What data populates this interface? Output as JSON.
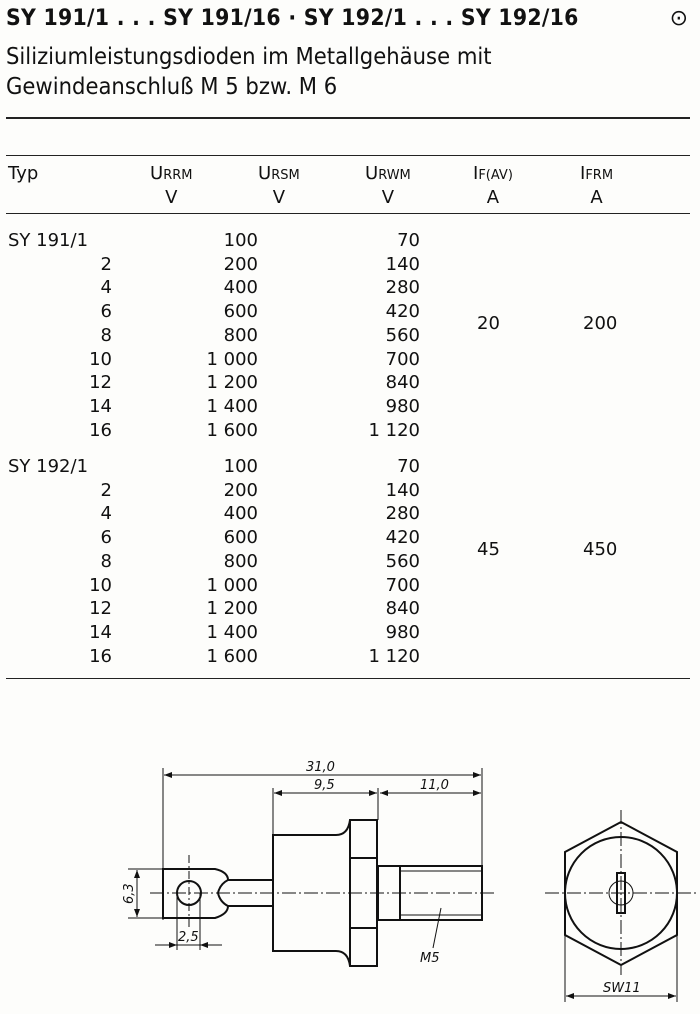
{
  "header": {
    "title": "SY 191/1 . . . SY 191/16 · SY 192/1 . . . SY 192/16",
    "symbol": "⊙",
    "subtitle_line1": "Siliziumleistungsdioden im Metallgehäuse mit",
    "subtitle_line2": "Gewindeanschluß M 5 bzw. M 6"
  },
  "table": {
    "columns": [
      {
        "symbol": "Typ",
        "sub": "",
        "unit": ""
      },
      {
        "symbol": "U",
        "sub": "RRM",
        "unit": "V"
      },
      {
        "symbol": "U",
        "sub": "RSM",
        "unit": "V"
      },
      {
        "symbol": "U",
        "sub": "RWM",
        "unit": "V"
      },
      {
        "symbol": "I",
        "sub": "F(AV)",
        "unit": "A"
      },
      {
        "symbol": "I",
        "sub": "FRM",
        "unit": "A"
      }
    ],
    "groups": [
      {
        "if_av": "20",
        "ifrm": "200",
        "rows": [
          {
            "typ": "SY 191/1",
            "urrm": "100",
            "urwm": "70"
          },
          {
            "typ": "2",
            "urrm": "200",
            "urwm": "140"
          },
          {
            "typ": "4",
            "urrm": "400",
            "urwm": "280"
          },
          {
            "typ": "6",
            "urrm": "600",
            "urwm": "420"
          },
          {
            "typ": "8",
            "urrm": "800",
            "urwm": "560"
          },
          {
            "typ": "10",
            "urrm": "1 000",
            "urwm": "700"
          },
          {
            "typ": "12",
            "urrm": "1 200",
            "urwm": "840"
          },
          {
            "typ": "14",
            "urrm": "1 400",
            "urwm": "980"
          },
          {
            "typ": "16",
            "urrm": "1 600",
            "urwm": "1 120"
          }
        ]
      },
      {
        "if_av": "45",
        "ifrm": "450",
        "rows": [
          {
            "typ": "SY 192/1",
            "urrm": "100",
            "urwm": "70"
          },
          {
            "typ": "2",
            "urrm": "200",
            "urwm": "140"
          },
          {
            "typ": "4",
            "urrm": "400",
            "urwm": "280"
          },
          {
            "typ": "6",
            "urrm": "600",
            "urwm": "420"
          },
          {
            "typ": "8",
            "urrm": "800",
            "urwm": "560"
          },
          {
            "typ": "10",
            "urrm": "1 000",
            "urwm": "700"
          },
          {
            "typ": "12",
            "urrm": "1 200",
            "urwm": "840"
          },
          {
            "typ": "14",
            "urrm": "1 400",
            "urwm": "980"
          },
          {
            "typ": "16",
            "urrm": "1 600",
            "urwm": "1 120"
          }
        ]
      }
    ]
  },
  "drawing": {
    "dim_total": "31,0",
    "dim_body": "9,5",
    "dim_thread": "11,0",
    "dim_lug_height": "6,3",
    "dim_hole": "2,5",
    "thread_label": "M5",
    "wrench_size": "SW11"
  }
}
